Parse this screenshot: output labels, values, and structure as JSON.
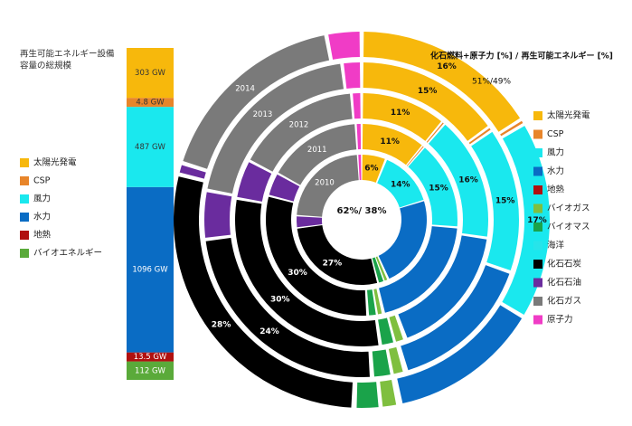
{
  "chart_data": [
    {
      "type": "bar",
      "title": "再生可能エネルギー設備\n容量の総規模",
      "stacked": true,
      "segments": [
        {
          "name": "バイオエネルギー",
          "value": 112,
          "label": "112 GW",
          "color": "#5aaa3a"
        },
        {
          "name": "地熱",
          "value": 13.5,
          "label": "13.5 GW",
          "color": "#b01010"
        },
        {
          "name": "水力",
          "value": 1096,
          "label": "1096 GW",
          "color": "#0a6cc4"
        },
        {
          "name": "風力",
          "value": 487,
          "label": "487 GW",
          "color": "#1ae8ee"
        },
        {
          "name": "CSP",
          "value": 4.8,
          "label": "4.8 GW",
          "color": "#e8852a"
        },
        {
          "name": "太陽光発電",
          "value": 303,
          "label": "303 GW",
          "color": "#f7b80c"
        }
      ],
      "legend": [
        {
          "name": "太陽光発電",
          "color": "#f7b80c"
        },
        {
          "name": "CSP",
          "color": "#e8852a"
        },
        {
          "name": "風力",
          "color": "#1ae8ee"
        },
        {
          "name": "水力",
          "color": "#0a6cc4"
        },
        {
          "name": "地熱",
          "color": "#b01010"
        },
        {
          "name": "バイオエネルギー",
          "color": "#5aaa3a"
        }
      ]
    },
    {
      "type": "pie",
      "title": "化石燃料+原子力 [%] / 再生可能エネルギー [%]",
      "years": [
        "2010",
        "2011",
        "2012",
        "2013",
        "2014"
      ],
      "center_label": "62%/ 38%",
      "outer_label": "51%/49%",
      "categories": [
        "太陽光発電",
        "CSP",
        "風力",
        "水力",
        "地熱",
        "バイオガス",
        "バイオマス",
        "海洋",
        "化石石炭",
        "化石石油",
        "化石ガス",
        "原子力"
      ],
      "colors": [
        "#f7b80c",
        "#e8852a",
        "#1ae8ee",
        "#0a6cc4",
        "#b01010",
        "#7fbf3f",
        "#1aa34a",
        "#27e4ea",
        "#000000",
        "#6a2c9e",
        "#7a7a7a",
        "#f03cc6"
      ],
      "series": [
        {
          "name": "2010",
          "values": [
            6,
            0.2,
            14,
            23,
            0.2,
            1,
            1.5,
            0.1,
            27,
            3,
            23,
            1
          ]
        },
        {
          "name": "2011",
          "values": [
            11,
            0.3,
            15,
            20,
            0.2,
            1,
            1.5,
            0.1,
            30,
            4,
            16,
            1
          ]
        },
        {
          "name": "2012",
          "values": [
            11,
            0.3,
            16,
            17,
            0.2,
            1.3,
            1.8,
            0.1,
            30,
            5,
            16,
            1.3
          ]
        },
        {
          "name": "2013",
          "values": [
            15,
            0.4,
            15,
            15,
            0.2,
            1.3,
            2,
            0.1,
            24,
            5,
            20,
            2
          ]
        },
        {
          "name": "2014",
          "values": [
            16,
            0.4,
            17,
            13,
            0.2,
            1.5,
            2.2,
            0.1,
            28,
            1,
            17,
            3
          ]
        }
      ],
      "data_labels": [
        {
          "year": "2010",
          "category": "太陽光発電",
          "label": "6%"
        },
        {
          "year": "2010",
          "category": "風力",
          "label": "14%"
        },
        {
          "year": "2010",
          "category": "化石石炭",
          "label": "27%"
        },
        {
          "year": "2011",
          "category": "太陽光発電",
          "label": "11%"
        },
        {
          "year": "2011",
          "category": "風力",
          "label": "15%"
        },
        {
          "year": "2011",
          "category": "化石石炭",
          "label": "30%"
        },
        {
          "year": "2012",
          "category": "太陽光発電",
          "label": "11%"
        },
        {
          "year": "2012",
          "category": "風力",
          "label": "16%"
        },
        {
          "year": "2012",
          "category": "化石石炭",
          "label": "30%"
        },
        {
          "year": "2013",
          "category": "太陽光発電",
          "label": "15%"
        },
        {
          "year": "2013",
          "category": "風力",
          "label": "15%"
        },
        {
          "year": "2013",
          "category": "化石石炭",
          "label": "24%"
        },
        {
          "year": "2014",
          "category": "太陽光発電",
          "label": "16%"
        },
        {
          "year": "2014",
          "category": "風力",
          "label": "17%"
        },
        {
          "year": "2014",
          "category": "化石石炭",
          "label": "28%"
        }
      ]
    }
  ]
}
